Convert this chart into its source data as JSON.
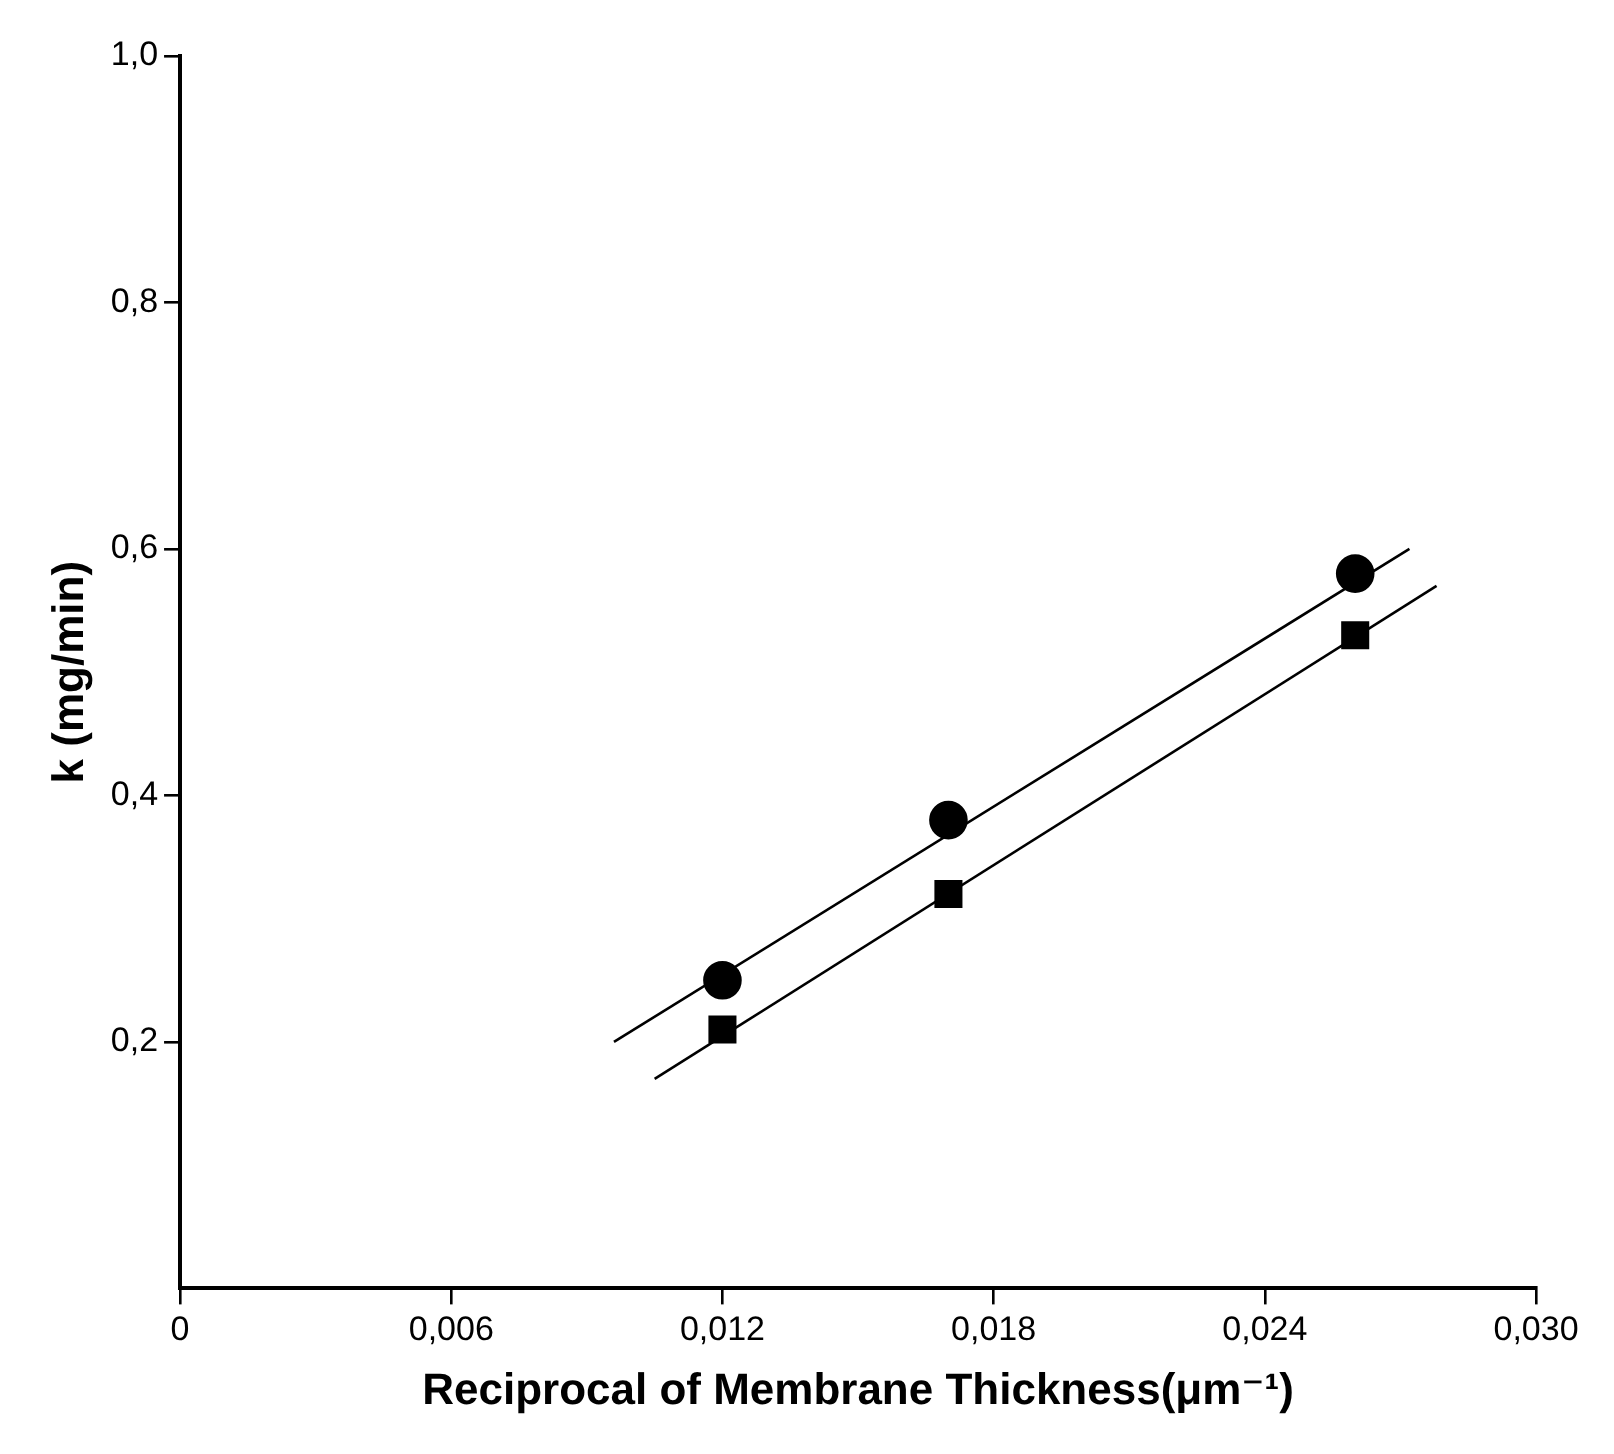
{
  "chart_data": {
    "type": "scatter",
    "xlabel": "Reciprocal of Membrane Thickness(μm⁻¹)",
    "ylabel": "k (mg/min)",
    "xlim": [
      0,
      0.03
    ],
    "ylim": [
      0,
      1.0
    ],
    "xticks": [
      0,
      {
        "value": 0.006,
        "label": "0,006"
      },
      {
        "value": 0.012,
        "label": "0,012"
      },
      {
        "value": 0.018,
        "label": "0,018"
      },
      {
        "value": 0.024,
        "label": "0,024"
      },
      {
        "value": 0.03,
        "label": "0,030"
      }
    ],
    "yticks": [
      {
        "value": 0.2,
        "label": "0,2"
      },
      {
        "value": 0.4,
        "label": "0,4"
      },
      {
        "value": 0.6,
        "label": "0,6"
      },
      {
        "value": 0.8,
        "label": "0,8"
      },
      {
        "value": 1.0,
        "label": "1,0"
      }
    ],
    "grid": false,
    "legend": false,
    "series": [
      {
        "type": "scatter",
        "marker": "circle",
        "color": "#000000",
        "x": [
          0.012,
          0.017,
          0.026
        ],
        "values": [
          0.25,
          0.38,
          0.58
        ]
      },
      {
        "type": "scatter",
        "marker": "square",
        "color": "#000000",
        "x": [
          0.012,
          0.017,
          0.026
        ],
        "values": [
          0.21,
          0.32,
          0.53
        ]
      },
      {
        "type": "line",
        "marker": "none",
        "line_style": "solid",
        "color": "#000000",
        "x": [
          0.0096,
          0.0272
        ],
        "values": [
          0.2,
          0.6
        ]
      },
      {
        "type": "line",
        "marker": "none",
        "line_style": "solid",
        "color": "#000000",
        "x": [
          0.0105,
          0.0278
        ],
        "values": [
          0.17,
          0.57
        ]
      }
    ]
  }
}
